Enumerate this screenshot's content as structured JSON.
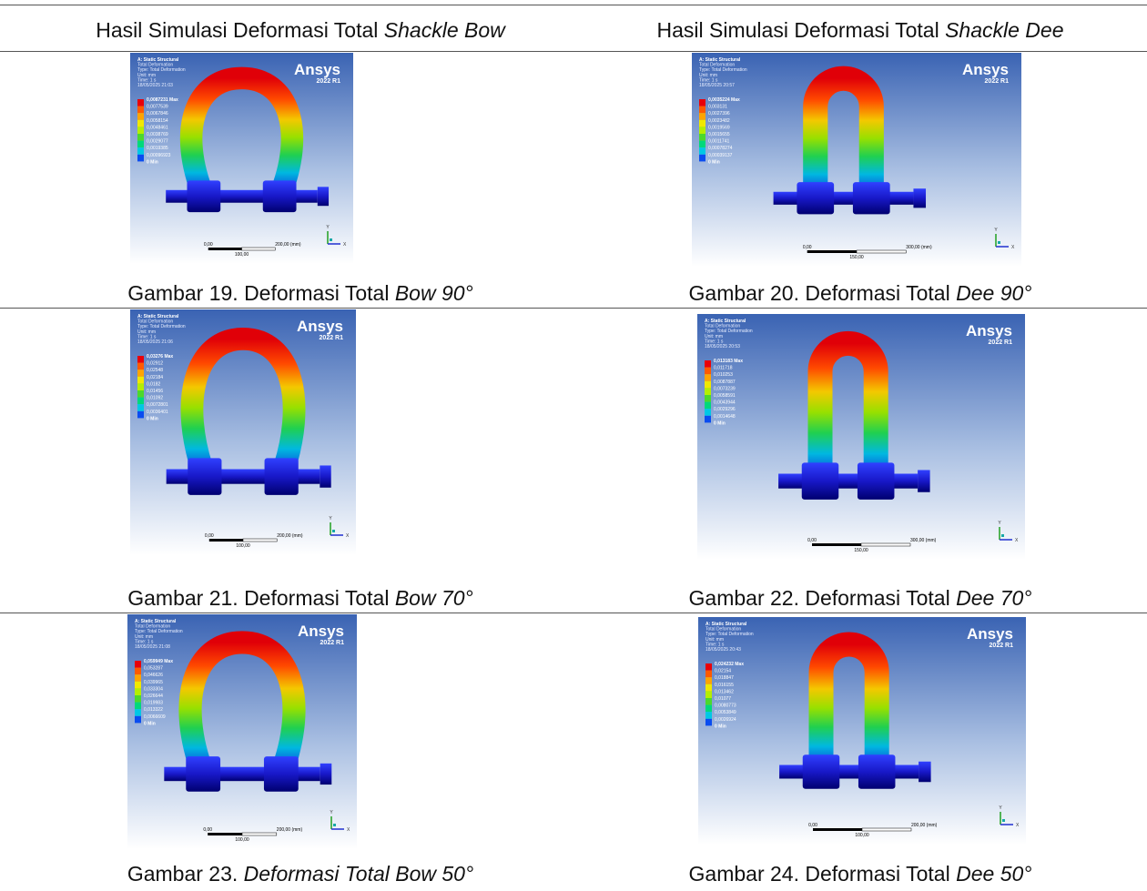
{
  "header": [
    {
      "text": "Hasil Simulasi Deformasi Total ",
      "italic": "Shackle Bow"
    },
    {
      "text": "Hasil Simulasi Deformasi Total ",
      "italic": "Shackle Dee"
    }
  ],
  "ansys": {
    "lines": [
      "A: Static Structural",
      "Total Deformation",
      "Type: Total Deformation",
      "Unit: mm",
      "Time: 1 s"
    ],
    "brand": "Ansys",
    "version": "2022 R1",
    "axes": [
      "Y",
      "X"
    ]
  },
  "figures": [
    {
      "kind": "bow",
      "date": "18/05/2025 21:03",
      "legend": [
        "0,0087231 Max",
        "0,0077539",
        "0,0067846",
        "0,0058154",
        "0,0048461",
        "0,0038769",
        "0,0029077",
        "0,0019385",
        "0,00096923",
        "0 Min"
      ],
      "scale": [
        "0,00",
        "200,00 (mm)",
        "100,00"
      ],
      "caption": {
        "text": "Gambar 19. Deformasi Total ",
        "italic": "Bow 90°"
      }
    },
    {
      "kind": "dee",
      "date": "18/05/2025 20:57",
      "legend": [
        "0,0035224 Max",
        "0,003131",
        "0,0027396",
        "0,0023482",
        "0,0019569",
        "0,0015655",
        "0,0011741",
        "0,00078274",
        "0,00039137",
        "0 Min"
      ],
      "scale": [
        "0,00",
        "300,00 (mm)",
        "150,00"
      ],
      "caption": {
        "text": "Gambar 20. Deformasi Total ",
        "italic": "Dee 90°"
      }
    },
    {
      "kind": "bow",
      "date": "18/05/2025 21:06",
      "legend": [
        "0,03276 Max",
        "0,02912",
        "0,02548",
        "0,02184",
        "0,0182",
        "0,01456",
        "0,01092",
        "0,0072801",
        "0,0036401",
        "0 Min"
      ],
      "scale": [
        "0,00",
        "200,00 (mm)",
        "100,00"
      ],
      "caption": {
        "text": "Gambar 21. Deformasi Total ",
        "italic": "Bow 70°"
      }
    },
    {
      "kind": "dee",
      "date": "18/05/2025 20:53",
      "legend": [
        "0,013183 Max",
        "0,011718",
        "0,010253",
        "0,0087887",
        "0,0073239",
        "0,0058591",
        "0,0043944",
        "0,0029296",
        "0,0014648",
        "0 Min"
      ],
      "scale": [
        "0,00",
        "300,00 (mm)",
        "150,00"
      ],
      "caption": {
        "text": "Gambar 22. Deformasi Total ",
        "italic": "Dee 70°"
      }
    },
    {
      "kind": "bow",
      "date": "18/05/2025 21:08",
      "legend": [
        "0,059949 Max",
        "0,053287",
        "0,046626",
        "0,039965",
        "0,033304",
        "0,026644",
        "0,019983",
        "0,013322",
        "0,0066609",
        "0 Min"
      ],
      "scale": [
        "0,00",
        "200,00 (mm)",
        "100,00"
      ],
      "caption": {
        "text": "Gambar 23. ",
        "italic": "Deformasi Total Bow 50°"
      }
    },
    {
      "kind": "dee",
      "date": "18/05/2025 20:43",
      "legend": [
        "0,024232 Max",
        "0,02154",
        "0,018847",
        "0,016155",
        "0,013462",
        "0,01077",
        "0,0080773",
        "0,0053849",
        "0,0026924",
        "0 Min"
      ],
      "scale": [
        "0,00",
        "200,00 (mm)",
        "100,00"
      ],
      "caption": {
        "text": "Gambar 24. Deformasi Total ",
        "italic": "Dee 50°"
      }
    }
  ]
}
